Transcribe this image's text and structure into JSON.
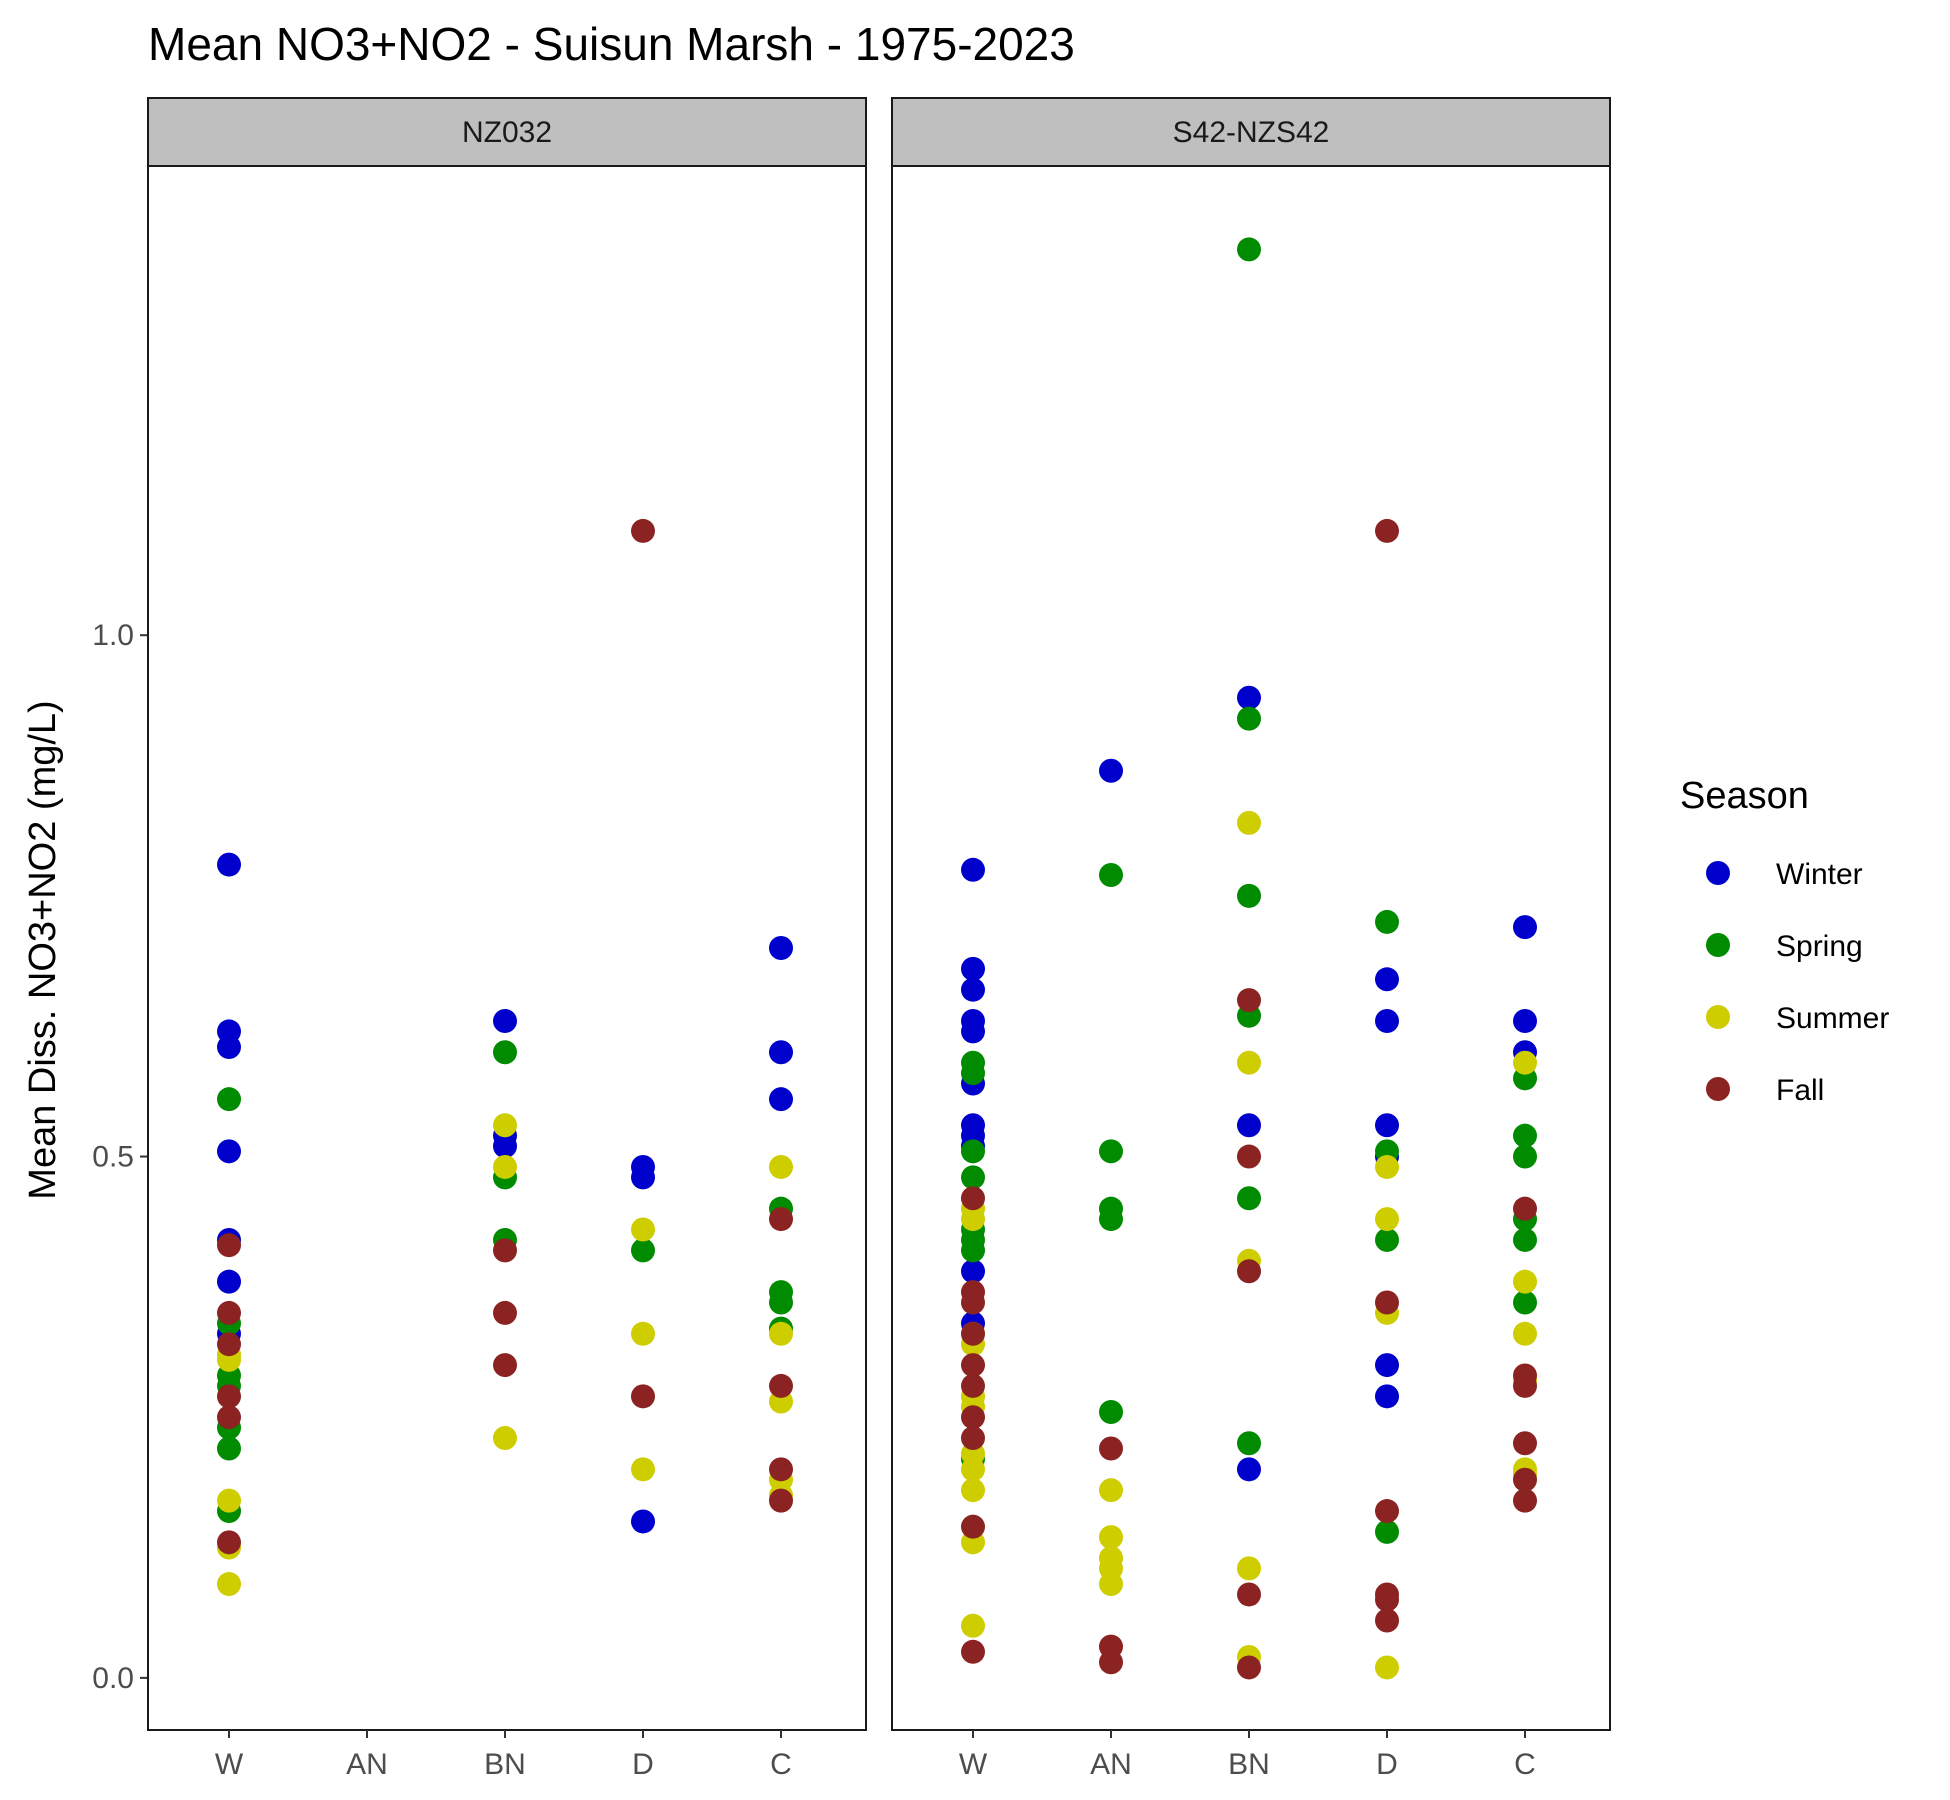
{
  "chart_data": {
    "type": "scatter",
    "title": "Mean NO3+NO2 - Suisun Marsh - 1975-2023",
    "ylabel": "Mean Diss. NO3+NO2 (mg/L)",
    "xlabel": "",
    "categories": [
      "W",
      "AN",
      "BN",
      "D",
      "C"
    ],
    "ylim": [
      -0.05,
      1.45
    ],
    "yticks": [
      0.0,
      0.5,
      1.0
    ],
    "ytick_labels": [
      "0.0",
      "0.5",
      "1.0"
    ],
    "grid": false,
    "legend": {
      "title": "Season",
      "position": "right",
      "entries": [
        {
          "name": "Winter",
          "color": "#0000CD"
        },
        {
          "name": "Spring",
          "color": "#008B00"
        },
        {
          "name": "Summer",
          "color": "#CDCD00"
        },
        {
          "name": "Fall",
          "color": "#8B2323"
        }
      ]
    },
    "panels": [
      {
        "strip": "NZ032",
        "points": [
          {
            "x": "W",
            "season": "Winter",
            "y": 0.78
          },
          {
            "x": "W",
            "season": "Winter",
            "y": 0.62
          },
          {
            "x": "W",
            "season": "Winter",
            "y": 0.605
          },
          {
            "x": "W",
            "season": "Winter",
            "y": 0.505
          },
          {
            "x": "W",
            "season": "Winter",
            "y": 0.42
          },
          {
            "x": "W",
            "season": "Winter",
            "y": 0.38
          },
          {
            "x": "W",
            "season": "Winter",
            "y": 0.33
          },
          {
            "x": "W",
            "season": "Spring",
            "y": 0.555
          },
          {
            "x": "W",
            "season": "Spring",
            "y": 0.34
          },
          {
            "x": "W",
            "season": "Spring",
            "y": 0.29
          },
          {
            "x": "W",
            "season": "Spring",
            "y": 0.28
          },
          {
            "x": "W",
            "season": "Spring",
            "y": 0.24
          },
          {
            "x": "W",
            "season": "Spring",
            "y": 0.22
          },
          {
            "x": "W",
            "season": "Spring",
            "y": 0.16
          },
          {
            "x": "W",
            "season": "Summer",
            "y": 0.31
          },
          {
            "x": "W",
            "season": "Summer",
            "y": 0.305
          },
          {
            "x": "W",
            "season": "Summer",
            "y": 0.17
          },
          {
            "x": "W",
            "season": "Summer",
            "y": 0.125
          },
          {
            "x": "W",
            "season": "Summer",
            "y": 0.09
          },
          {
            "x": "W",
            "season": "Fall",
            "y": 0.415
          },
          {
            "x": "W",
            "season": "Fall",
            "y": 0.35
          },
          {
            "x": "W",
            "season": "Fall",
            "y": 0.32
          },
          {
            "x": "W",
            "season": "Fall",
            "y": 0.27
          },
          {
            "x": "W",
            "season": "Fall",
            "y": 0.25
          },
          {
            "x": "W",
            "season": "Fall",
            "y": 0.13
          },
          {
            "x": "BN",
            "season": "Winter",
            "y": 0.63
          },
          {
            "x": "BN",
            "season": "Winter",
            "y": 0.52
          },
          {
            "x": "BN",
            "season": "Winter",
            "y": 0.51
          },
          {
            "x": "BN",
            "season": "Spring",
            "y": 0.6
          },
          {
            "x": "BN",
            "season": "Spring",
            "y": 0.48
          },
          {
            "x": "BN",
            "season": "Spring",
            "y": 0.42
          },
          {
            "x": "BN",
            "season": "Summer",
            "y": 0.53
          },
          {
            "x": "BN",
            "season": "Summer",
            "y": 0.49
          },
          {
            "x": "BN",
            "season": "Summer",
            "y": 0.23
          },
          {
            "x": "BN",
            "season": "Fall",
            "y": 0.41
          },
          {
            "x": "BN",
            "season": "Fall",
            "y": 0.35
          },
          {
            "x": "BN",
            "season": "Fall",
            "y": 0.3
          },
          {
            "x": "D",
            "season": "Winter",
            "y": 0.49
          },
          {
            "x": "D",
            "season": "Winter",
            "y": 0.48
          },
          {
            "x": "D",
            "season": "Winter",
            "y": 0.15
          },
          {
            "x": "D",
            "season": "Spring",
            "y": 0.41
          },
          {
            "x": "D",
            "season": "Summer",
            "y": 0.43
          },
          {
            "x": "D",
            "season": "Summer",
            "y": 0.33
          },
          {
            "x": "D",
            "season": "Summer",
            "y": 0.2
          },
          {
            "x": "D",
            "season": "Fall",
            "y": 1.1
          },
          {
            "x": "D",
            "season": "Fall",
            "y": 0.27
          },
          {
            "x": "C",
            "season": "Winter",
            "y": 0.7
          },
          {
            "x": "C",
            "season": "Winter",
            "y": 0.6
          },
          {
            "x": "C",
            "season": "Winter",
            "y": 0.555
          },
          {
            "x": "C",
            "season": "Spring",
            "y": 0.45
          },
          {
            "x": "C",
            "season": "Spring",
            "y": 0.37
          },
          {
            "x": "C",
            "season": "Spring",
            "y": 0.36
          },
          {
            "x": "C",
            "season": "Spring",
            "y": 0.335
          },
          {
            "x": "C",
            "season": "Summer",
            "y": 0.49
          },
          {
            "x": "C",
            "season": "Summer",
            "y": 0.33
          },
          {
            "x": "C",
            "season": "Summer",
            "y": 0.265
          },
          {
            "x": "C",
            "season": "Summer",
            "y": 0.19
          },
          {
            "x": "C",
            "season": "Summer",
            "y": 0.175
          },
          {
            "x": "C",
            "season": "Fall",
            "y": 0.44
          },
          {
            "x": "C",
            "season": "Fall",
            "y": 0.28
          },
          {
            "x": "C",
            "season": "Fall",
            "y": 0.2
          },
          {
            "x": "C",
            "season": "Fall",
            "y": 0.17
          }
        ]
      },
      {
        "strip": "S42-NZS42",
        "points": [
          {
            "x": "W",
            "season": "Winter",
            "y": 0.775
          },
          {
            "x": "W",
            "season": "Winter",
            "y": 0.68
          },
          {
            "x": "W",
            "season": "Winter",
            "y": 0.66
          },
          {
            "x": "W",
            "season": "Winter",
            "y": 0.63
          },
          {
            "x": "W",
            "season": "Winter",
            "y": 0.62
          },
          {
            "x": "W",
            "season": "Winter",
            "y": 0.57
          },
          {
            "x": "W",
            "season": "Winter",
            "y": 0.53
          },
          {
            "x": "W",
            "season": "Winter",
            "y": 0.52
          },
          {
            "x": "W",
            "season": "Winter",
            "y": 0.51
          },
          {
            "x": "W",
            "season": "Winter",
            "y": 0.39
          },
          {
            "x": "W",
            "season": "Winter",
            "y": 0.34
          },
          {
            "x": "W",
            "season": "Spring",
            "y": 0.59
          },
          {
            "x": "W",
            "season": "Spring",
            "y": 0.58
          },
          {
            "x": "W",
            "season": "Spring",
            "y": 0.505
          },
          {
            "x": "W",
            "season": "Spring",
            "y": 0.48
          },
          {
            "x": "W",
            "season": "Spring",
            "y": 0.43
          },
          {
            "x": "W",
            "season": "Spring",
            "y": 0.42
          },
          {
            "x": "W",
            "season": "Spring",
            "y": 0.41
          },
          {
            "x": "W",
            "season": "Spring",
            "y": 0.21
          },
          {
            "x": "W",
            "season": "Summer",
            "y": 0.45
          },
          {
            "x": "W",
            "season": "Summer",
            "y": 0.44
          },
          {
            "x": "W",
            "season": "Summer",
            "y": 0.33
          },
          {
            "x": "W",
            "season": "Summer",
            "y": 0.32
          },
          {
            "x": "W",
            "season": "Summer",
            "y": 0.27
          },
          {
            "x": "W",
            "season": "Summer",
            "y": 0.26
          },
          {
            "x": "W",
            "season": "Summer",
            "y": 0.215
          },
          {
            "x": "W",
            "season": "Summer",
            "y": 0.2
          },
          {
            "x": "W",
            "season": "Summer",
            "y": 0.18
          },
          {
            "x": "W",
            "season": "Summer",
            "y": 0.13
          },
          {
            "x": "W",
            "season": "Summer",
            "y": 0.05
          },
          {
            "x": "W",
            "season": "Fall",
            "y": 0.46
          },
          {
            "x": "W",
            "season": "Fall",
            "y": 0.37
          },
          {
            "x": "W",
            "season": "Fall",
            "y": 0.36
          },
          {
            "x": "W",
            "season": "Fall",
            "y": 0.33
          },
          {
            "x": "W",
            "season": "Fall",
            "y": 0.3
          },
          {
            "x": "W",
            "season": "Fall",
            "y": 0.28
          },
          {
            "x": "W",
            "season": "Fall",
            "y": 0.25
          },
          {
            "x": "W",
            "season": "Fall",
            "y": 0.23
          },
          {
            "x": "W",
            "season": "Fall",
            "y": 0.145
          },
          {
            "x": "W",
            "season": "Fall",
            "y": 0.025
          },
          {
            "x": "AN",
            "season": "Winter",
            "y": 0.87
          },
          {
            "x": "AN",
            "season": "Spring",
            "y": 0.77
          },
          {
            "x": "AN",
            "season": "Spring",
            "y": 0.505
          },
          {
            "x": "AN",
            "season": "Spring",
            "y": 0.45
          },
          {
            "x": "AN",
            "season": "Spring",
            "y": 0.44
          },
          {
            "x": "AN",
            "season": "Spring",
            "y": 0.255
          },
          {
            "x": "AN",
            "season": "Summer",
            "y": 0.18
          },
          {
            "x": "AN",
            "season": "Summer",
            "y": 0.135
          },
          {
            "x": "AN",
            "season": "Summer",
            "y": 0.115
          },
          {
            "x": "AN",
            "season": "Summer",
            "y": 0.105
          },
          {
            "x": "AN",
            "season": "Summer",
            "y": 0.09
          },
          {
            "x": "AN",
            "season": "Fall",
            "y": 0.22
          },
          {
            "x": "AN",
            "season": "Fall",
            "y": 0.03
          },
          {
            "x": "AN",
            "season": "Fall",
            "y": 0.015
          },
          {
            "x": "BN",
            "season": "Winter",
            "y": 0.94
          },
          {
            "x": "BN",
            "season": "Winter",
            "y": 0.53
          },
          {
            "x": "BN",
            "season": "Winter",
            "y": 0.2
          },
          {
            "x": "BN",
            "season": "Spring",
            "y": 1.37
          },
          {
            "x": "BN",
            "season": "Spring",
            "y": 0.92
          },
          {
            "x": "BN",
            "season": "Spring",
            "y": 0.75
          },
          {
            "x": "BN",
            "season": "Spring",
            "y": 0.635
          },
          {
            "x": "BN",
            "season": "Spring",
            "y": 0.46
          },
          {
            "x": "BN",
            "season": "Spring",
            "y": 0.225
          },
          {
            "x": "BN",
            "season": "Summer",
            "y": 0.82
          },
          {
            "x": "BN",
            "season": "Summer",
            "y": 0.59
          },
          {
            "x": "BN",
            "season": "Summer",
            "y": 0.4
          },
          {
            "x": "BN",
            "season": "Summer",
            "y": 0.105
          },
          {
            "x": "BN",
            "season": "Summer",
            "y": 0.02
          },
          {
            "x": "BN",
            "season": "Fall",
            "y": 0.65
          },
          {
            "x": "BN",
            "season": "Fall",
            "y": 0.5
          },
          {
            "x": "BN",
            "season": "Fall",
            "y": 0.39
          },
          {
            "x": "BN",
            "season": "Fall",
            "y": 0.08
          },
          {
            "x": "BN",
            "season": "Fall",
            "y": 0.01
          },
          {
            "x": "D",
            "season": "Winter",
            "y": 0.67
          },
          {
            "x": "D",
            "season": "Winter",
            "y": 0.63
          },
          {
            "x": "D",
            "season": "Winter",
            "y": 0.53
          },
          {
            "x": "D",
            "season": "Winter",
            "y": 0.5
          },
          {
            "x": "D",
            "season": "Winter",
            "y": 0.3
          },
          {
            "x": "D",
            "season": "Winter",
            "y": 0.27
          },
          {
            "x": "D",
            "season": "Spring",
            "y": 0.725
          },
          {
            "x": "D",
            "season": "Spring",
            "y": 0.505
          },
          {
            "x": "D",
            "season": "Spring",
            "y": 0.42
          },
          {
            "x": "D",
            "season": "Spring",
            "y": 0.14
          },
          {
            "x": "D",
            "season": "Summer",
            "y": 0.49
          },
          {
            "x": "D",
            "season": "Summer",
            "y": 0.44
          },
          {
            "x": "D",
            "season": "Summer",
            "y": 0.35
          },
          {
            "x": "D",
            "season": "Summer",
            "y": 0.01
          },
          {
            "x": "D",
            "season": "Fall",
            "y": 1.1
          },
          {
            "x": "D",
            "season": "Fall",
            "y": 0.36
          },
          {
            "x": "D",
            "season": "Fall",
            "y": 0.16
          },
          {
            "x": "D",
            "season": "Fall",
            "y": 0.08
          },
          {
            "x": "D",
            "season": "Fall",
            "y": 0.075
          },
          {
            "x": "D",
            "season": "Fall",
            "y": 0.055
          },
          {
            "x": "C",
            "season": "Winter",
            "y": 0.72
          },
          {
            "x": "C",
            "season": "Winter",
            "y": 0.63
          },
          {
            "x": "C",
            "season": "Winter",
            "y": 0.6
          },
          {
            "x": "C",
            "season": "Spring",
            "y": 0.575
          },
          {
            "x": "C",
            "season": "Spring",
            "y": 0.52
          },
          {
            "x": "C",
            "season": "Spring",
            "y": 0.5
          },
          {
            "x": "C",
            "season": "Spring",
            "y": 0.44
          },
          {
            "x": "C",
            "season": "Spring",
            "y": 0.42
          },
          {
            "x": "C",
            "season": "Spring",
            "y": 0.36
          },
          {
            "x": "C",
            "season": "Summer",
            "y": 0.59
          },
          {
            "x": "C",
            "season": "Summer",
            "y": 0.38
          },
          {
            "x": "C",
            "season": "Summer",
            "y": 0.33
          },
          {
            "x": "C",
            "season": "Summer",
            "y": 0.285
          },
          {
            "x": "C",
            "season": "Summer",
            "y": 0.2
          },
          {
            "x": "C",
            "season": "Summer",
            "y": 0.195
          },
          {
            "x": "C",
            "season": "Fall",
            "y": 0.45
          },
          {
            "x": "C",
            "season": "Fall",
            "y": 0.29
          },
          {
            "x": "C",
            "season": "Fall",
            "y": 0.28
          },
          {
            "x": "C",
            "season": "Fall",
            "y": 0.225
          },
          {
            "x": "C",
            "season": "Fall",
            "y": 0.19
          },
          {
            "x": "C",
            "season": "Fall",
            "y": 0.17
          }
        ]
      }
    ]
  }
}
